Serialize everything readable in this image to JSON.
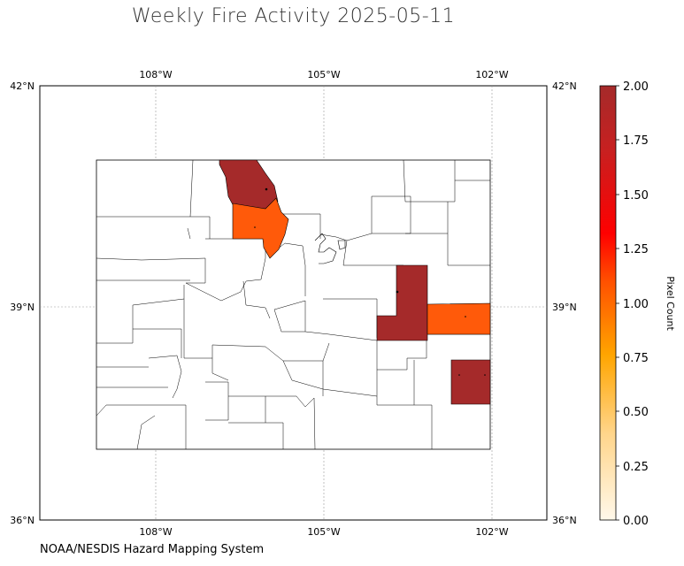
{
  "title": "Weekly Fire Activity 2025-05-11",
  "credit": "NOAA/NESDIS Hazard Mapping System",
  "map": {
    "lon_ticks": [
      "108°W",
      "105°W",
      "102°W"
    ],
    "lat_ticks": [
      "42°N",
      "39°N",
      "36°N"
    ],
    "highlighted_counties": [
      {
        "value": 2,
        "color": "#a52a2a"
      },
      {
        "value": 1,
        "color": "#ff5a0a"
      },
      {
        "value": 2,
        "color": "#a52a2a"
      },
      {
        "value": 1,
        "color": "#ff5a0a"
      },
      {
        "value": 2,
        "color": "#a52a2a"
      }
    ]
  },
  "colorbar": {
    "label": "Pixel Count",
    "ticks": [
      "2.00",
      "1.75",
      "1.50",
      "1.25",
      "1.00",
      "0.75",
      "0.50",
      "0.25",
      "0.00"
    ],
    "range": [
      0,
      2
    ],
    "colors": [
      "#fff5e0",
      "#ffc64a",
      "#ffa500",
      "#ff4500",
      "#ff0000",
      "#b22222",
      "#a52a2a"
    ]
  }
}
